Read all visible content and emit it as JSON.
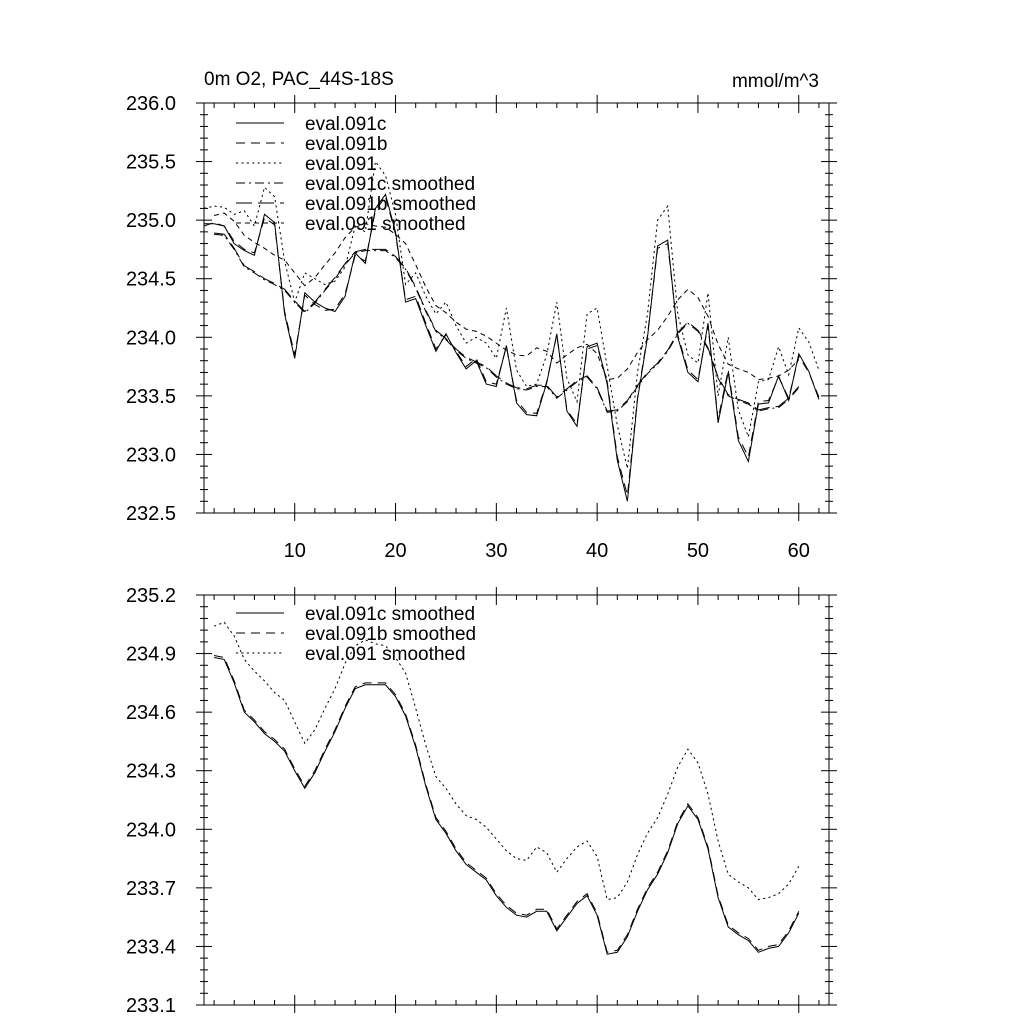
{
  "chart_data": [
    {
      "type": "line",
      "title": "0m O2, PAC_44S-18S",
      "units": "mmol/m^3",
      "xlabel": "",
      "ylabel": "",
      "xlim": [
        1,
        63
      ],
      "ylim": [
        232.5,
        236.0
      ],
      "xticks": [
        10,
        20,
        30,
        40,
        50,
        60
      ],
      "yticks": [
        232.5,
        233.0,
        233.5,
        234.0,
        234.5,
        235.0,
        235.5,
        236.0
      ],
      "ytick_labels": [
        "232.5",
        "233.0",
        "233.5",
        "234.0",
        "234.5",
        "235.0",
        "235.5",
        "236.0"
      ],
      "legend": [
        {
          "label": "eval.091c",
          "dash": "solid"
        },
        {
          "label": "eval.091b",
          "dash": "dashed"
        },
        {
          "label": "eval.091",
          "dash": "dotted"
        },
        {
          "label": "eval.091c smoothed",
          "dash": "dashdot"
        },
        {
          "label": "eval.091b smoothed",
          "dash": "longdash"
        },
        {
          "label": "eval.091 smoothed",
          "dash": "shortdash"
        }
      ],
      "legend_position": "top-left",
      "series": [
        {
          "name": "eval.091c",
          "dash": "solid",
          "x_start": 1,
          "values": [
            234.97,
            234.97,
            234.95,
            234.8,
            234.74,
            234.7,
            235.05,
            234.98,
            234.2,
            233.82,
            234.38,
            234.3,
            234.25,
            234.22,
            234.35,
            234.72,
            234.63,
            235.1,
            235.22,
            234.9,
            234.3,
            234.33,
            234.1,
            233.88,
            234.03,
            233.87,
            233.73,
            233.8,
            233.6,
            233.58,
            233.93,
            233.44,
            233.34,
            233.33,
            233.61,
            234.03,
            233.37,
            233.24,
            233.92,
            233.95,
            233.6,
            232.95,
            232.6,
            233.47,
            234.0,
            234.78,
            234.83,
            234.0,
            233.7,
            233.62,
            234.12,
            233.27,
            233.7,
            233.12,
            232.94,
            233.43,
            233.44,
            233.67,
            233.46,
            233.86,
            233.71,
            233.47
          ]
        },
        {
          "name": "eval.091b",
          "dash": "dashed",
          "x_start": 1,
          "values": [
            234.95,
            234.98,
            234.95,
            234.82,
            234.75,
            234.72,
            235.02,
            234.96,
            234.22,
            233.85,
            234.36,
            234.28,
            234.23,
            234.24,
            234.37,
            234.7,
            234.65,
            235.08,
            235.2,
            234.88,
            234.32,
            234.35,
            234.12,
            233.9,
            234.02,
            233.88,
            233.75,
            233.82,
            233.62,
            233.6,
            233.92,
            233.46,
            233.36,
            233.35,
            233.62,
            234.02,
            233.38,
            233.26,
            233.9,
            233.93,
            233.62,
            232.98,
            232.65,
            233.48,
            234.02,
            234.76,
            234.8,
            234.02,
            233.72,
            233.64,
            234.1,
            233.3,
            233.72,
            233.15,
            232.98,
            233.45,
            233.46,
            233.66,
            233.48,
            233.84,
            233.7,
            233.49
          ]
        },
        {
          "name": "eval.091",
          "dash": "dotted",
          "x_start": 1,
          "values": [
            235.1,
            235.12,
            235.11,
            235.05,
            235.08,
            234.95,
            235.28,
            235.2,
            234.65,
            234.3,
            234.55,
            234.5,
            234.45,
            234.48,
            234.6,
            234.95,
            234.9,
            235.5,
            235.38,
            235.05,
            234.45,
            234.55,
            234.35,
            234.2,
            234.3,
            234.1,
            233.95,
            234.0,
            233.95,
            233.82,
            234.25,
            233.72,
            233.58,
            233.6,
            233.85,
            234.3,
            233.65,
            233.45,
            234.2,
            234.25,
            233.75,
            233.25,
            232.88,
            233.7,
            234.2,
            235.0,
            235.12,
            234.2,
            233.85,
            233.78,
            234.38,
            233.5,
            234.0,
            233.38,
            233.15,
            233.62,
            233.64,
            233.92,
            233.68,
            234.08,
            233.96,
            233.72
          ]
        },
        {
          "name": "eval.091c smoothed",
          "dash": "dashdot",
          "x_start": 2,
          "values": [
            234.88,
            234.87,
            234.75,
            234.6,
            234.55,
            234.49,
            234.45,
            234.4,
            234.3,
            234.21,
            234.29,
            234.4,
            234.5,
            234.62,
            234.72,
            234.74,
            234.74,
            234.74,
            234.68,
            234.58,
            234.42,
            234.22,
            234.05,
            233.98,
            233.89,
            233.82,
            233.78,
            233.74,
            233.66,
            233.6,
            233.56,
            233.55,
            233.58,
            233.58,
            233.48,
            233.55,
            233.62,
            233.66,
            233.56,
            233.36,
            233.37,
            233.45,
            233.58,
            233.69,
            233.77,
            233.88,
            234.03,
            234.12,
            234.05,
            233.9,
            233.65,
            233.5,
            233.46,
            233.43,
            233.37,
            233.39,
            233.4,
            233.47,
            233.57
          ]
        },
        {
          "name": "eval.091b smoothed",
          "dash": "longdash",
          "x_start": 2,
          "values": [
            234.89,
            234.88,
            234.76,
            234.61,
            234.56,
            234.5,
            234.46,
            234.41,
            234.31,
            234.22,
            234.3,
            234.41,
            234.51,
            234.63,
            234.73,
            234.75,
            234.75,
            234.75,
            234.69,
            234.59,
            234.43,
            234.23,
            234.06,
            233.99,
            233.9,
            233.83,
            233.79,
            233.75,
            233.67,
            233.61,
            233.57,
            233.56,
            233.59,
            233.59,
            233.49,
            233.56,
            233.63,
            233.67,
            233.57,
            233.37,
            233.38,
            233.46,
            233.59,
            233.7,
            233.78,
            233.89,
            234.04,
            234.13,
            234.06,
            233.91,
            233.66,
            233.51,
            233.47,
            233.44,
            233.38,
            233.4,
            233.41,
            233.48,
            233.58
          ]
        },
        {
          "name": "eval.091 smoothed",
          "dash": "shortdash",
          "x_start": 2,
          "values": [
            235.04,
            235.06,
            234.99,
            234.87,
            234.81,
            234.76,
            234.7,
            234.66,
            234.55,
            234.44,
            234.51,
            234.62,
            234.72,
            234.85,
            234.94,
            234.97,
            234.95,
            234.94,
            234.88,
            234.8,
            234.62,
            234.43,
            234.27,
            234.21,
            234.13,
            234.07,
            234.05,
            234.01,
            233.95,
            233.89,
            233.85,
            233.84,
            233.91,
            233.88,
            233.78,
            233.85,
            233.91,
            233.94,
            233.86,
            233.64,
            233.65,
            233.73,
            233.87,
            233.98,
            234.06,
            234.18,
            234.32,
            234.41,
            234.34,
            234.18,
            233.94,
            233.77,
            233.73,
            233.7,
            233.64,
            233.65,
            233.67,
            233.72,
            233.81
          ]
        }
      ]
    },
    {
      "type": "line",
      "title": "",
      "xlabel": "",
      "ylabel": "",
      "xlim": [
        1,
        63
      ],
      "ylim": [
        233.1,
        235.2
      ],
      "xticks": [
        10,
        20,
        30,
        40,
        50,
        60
      ],
      "yticks": [
        233.1,
        233.4,
        233.7,
        234.0,
        234.3,
        234.6,
        234.9,
        235.2
      ],
      "ytick_labels": [
        "233.1",
        "233.4",
        "233.7",
        "234.0",
        "234.3",
        "234.6",
        "234.9",
        "235.2"
      ],
      "legend": [
        {
          "label": "eval.091c smoothed",
          "dash": "solid"
        },
        {
          "label": "eval.091b smoothed",
          "dash": "dashed"
        },
        {
          "label": "eval.091 smoothed",
          "dash": "dotted"
        }
      ],
      "legend_position": "top-left",
      "series": [
        {
          "name": "eval.091c smoothed",
          "dash": "solid",
          "x_start": 2,
          "values": [
            234.88,
            234.87,
            234.75,
            234.6,
            234.55,
            234.49,
            234.45,
            234.4,
            234.3,
            234.21,
            234.29,
            234.4,
            234.5,
            234.62,
            234.72,
            234.74,
            234.74,
            234.74,
            234.68,
            234.58,
            234.42,
            234.22,
            234.05,
            233.98,
            233.89,
            233.82,
            233.78,
            233.74,
            233.66,
            233.6,
            233.56,
            233.55,
            233.58,
            233.58,
            233.48,
            233.55,
            233.62,
            233.66,
            233.56,
            233.36,
            233.37,
            233.45,
            233.58,
            233.69,
            233.77,
            233.88,
            234.03,
            234.12,
            234.05,
            233.9,
            233.65,
            233.5,
            233.46,
            233.43,
            233.37,
            233.39,
            233.4,
            233.47,
            233.57
          ]
        },
        {
          "name": "eval.091b smoothed",
          "dash": "dashed",
          "x_start": 2,
          "values": [
            234.89,
            234.88,
            234.76,
            234.61,
            234.56,
            234.5,
            234.46,
            234.41,
            234.31,
            234.22,
            234.3,
            234.41,
            234.51,
            234.63,
            234.73,
            234.75,
            234.75,
            234.75,
            234.69,
            234.59,
            234.43,
            234.23,
            234.06,
            233.99,
            233.9,
            233.83,
            233.79,
            233.75,
            233.67,
            233.61,
            233.57,
            233.56,
            233.59,
            233.59,
            233.49,
            233.56,
            233.63,
            233.67,
            233.57,
            233.37,
            233.38,
            233.46,
            233.59,
            233.7,
            233.78,
            233.89,
            234.04,
            234.13,
            234.06,
            233.91,
            233.66,
            233.51,
            233.47,
            233.44,
            233.38,
            233.4,
            233.41,
            233.48,
            233.58
          ]
        },
        {
          "name": "eval.091 smoothed",
          "dash": "dotted",
          "x_start": 2,
          "values": [
            235.04,
            235.06,
            234.99,
            234.87,
            234.81,
            234.76,
            234.7,
            234.66,
            234.55,
            234.44,
            234.51,
            234.62,
            234.72,
            234.85,
            234.94,
            234.97,
            234.95,
            234.94,
            234.88,
            234.8,
            234.62,
            234.43,
            234.27,
            234.21,
            234.13,
            234.07,
            234.05,
            234.01,
            233.95,
            233.89,
            233.85,
            233.84,
            233.91,
            233.88,
            233.78,
            233.85,
            233.91,
            233.94,
            233.86,
            233.64,
            233.65,
            233.73,
            233.87,
            233.98,
            234.06,
            234.18,
            234.32,
            234.41,
            234.34,
            234.18,
            233.94,
            233.77,
            233.73,
            233.7,
            233.64,
            233.65,
            233.67,
            233.72,
            233.81
          ]
        }
      ]
    }
  ]
}
